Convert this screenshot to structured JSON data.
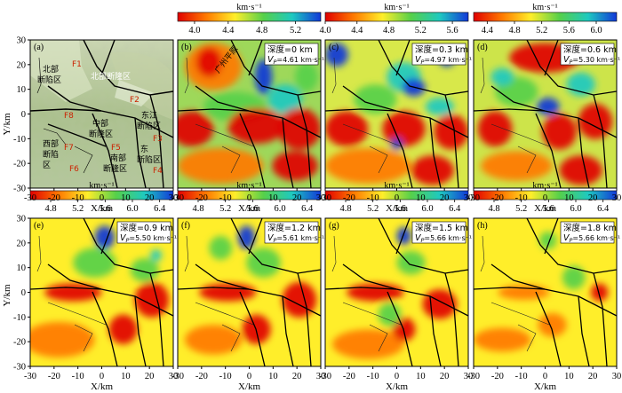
{
  "figure": {
    "unit": "km·s⁻¹",
    "ylabel": "Y/km",
    "xlabel": "X/km",
    "x_ticks": [
      "-30",
      "-20",
      "-10",
      "0",
      "10",
      "20",
      "30"
    ],
    "y_ticks": [
      "30",
      "20",
      "10",
      "0",
      "-10",
      "-20",
      "-30"
    ],
    "geo_map": {
      "letter": "(a)",
      "labels": [
        {
          "text": "北部",
          "color": "#000000"
        },
        {
          "text": "断陷区",
          "color": "#000000"
        },
        {
          "text": "F1",
          "color": "#cc2200"
        },
        {
          "text": "北部断隆区",
          "color": "#ffffff"
        },
        {
          "text": "F2",
          "color": "#cc2200"
        },
        {
          "text": "F8",
          "color": "#cc2200"
        },
        {
          "text": "中部",
          "color": "#000000"
        },
        {
          "text": "断隆区",
          "color": "#000000"
        },
        {
          "text": "东江",
          "color": "#000000"
        },
        {
          "text": "断陷区",
          "color": "#000000"
        },
        {
          "text": "西部",
          "color": "#000000"
        },
        {
          "text": "断陷",
          "color": "#000000"
        },
        {
          "text": "区",
          "color": "#000000"
        },
        {
          "text": "F7",
          "color": "#cc2200"
        },
        {
          "text": "F5",
          "color": "#cc2200"
        },
        {
          "text": "F3",
          "color": "#cc2200"
        },
        {
          "text": "东",
          "color": "#000000"
        },
        {
          "text": "南部",
          "color": "#000000"
        },
        {
          "text": "断陷区",
          "color": "#000000"
        },
        {
          "text": "断隆区",
          "color": "#000000"
        },
        {
          "text": "F6",
          "color": "#cc2200"
        },
        {
          "text": "F4",
          "color": "#cc2200"
        }
      ]
    }
  },
  "chart_data": [
    {
      "type": "heatmap",
      "panel": "(b)",
      "depth_label": "深度=0 km",
      "vp_label": "V",
      "vp_sub": "P",
      "vp_value": "=4.61 km·s⁻¹",
      "colorbar_ticks": [
        "4.0",
        "4.4",
        "4.8",
        "5.2"
      ],
      "colorbar_range": [
        3.8,
        5.5
      ],
      "annotation": "广州平原",
      "xlim": [
        -30,
        30
      ],
      "ylim": [
        -30,
        30
      ]
    },
    {
      "type": "heatmap",
      "panel": "(c)",
      "depth_label": "深度=0.3 km",
      "vp_label": "V",
      "vp_sub": "P",
      "vp_value": "=4.97 km·s⁻¹",
      "colorbar_ticks": [
        "4.0",
        "4.4",
        "4.8",
        "5.2",
        "5.6"
      ],
      "colorbar_range": [
        4.0,
        5.8
      ],
      "xlim": [
        -30,
        30
      ],
      "ylim": [
        -30,
        30
      ]
    },
    {
      "type": "heatmap",
      "panel": "(d)",
      "depth_label": "深度=0.6 km",
      "vp_label": "V",
      "vp_sub": "P",
      "vp_value": "=5.30 km·s⁻¹",
      "colorbar_ticks": [
        "4.4",
        "4.8",
        "5.2",
        "5.6",
        "6.0"
      ],
      "colorbar_range": [
        4.2,
        6.3
      ],
      "xlim": [
        -30,
        30
      ],
      "ylim": [
        -30,
        30
      ]
    },
    {
      "type": "heatmap",
      "panel": "(e)",
      "depth_label": "深度=0.9 km",
      "vp_label": "V",
      "vp_sub": "P",
      "vp_value": "=5.50 km·s⁻¹",
      "colorbar_ticks": [
        "4.8",
        "5.2",
        "5.6",
        "6.0",
        "6.4"
      ],
      "colorbar_range": [
        4.5,
        6.6
      ],
      "xlim": [
        -30,
        30
      ],
      "ylim": [
        -30,
        30
      ]
    },
    {
      "type": "heatmap",
      "panel": "(f)",
      "depth_label": "深度=1.2 km",
      "vp_label": "V",
      "vp_sub": "P",
      "vp_value": "=5.61 km·s⁻¹",
      "colorbar_ticks": [
        "4.8",
        "5.2",
        "5.6",
        "6.0",
        "6.4"
      ],
      "colorbar_range": [
        4.5,
        6.6
      ],
      "xlim": [
        -30,
        30
      ],
      "ylim": [
        -30,
        30
      ]
    },
    {
      "type": "heatmap",
      "panel": "(g)",
      "depth_label": "深度=1.5 km",
      "vp_label": "V",
      "vp_sub": "P",
      "vp_value": "=5.66 km·s⁻¹",
      "colorbar_ticks": [
        "4.8",
        "5.2",
        "5.6",
        "6.0",
        "6.4"
      ],
      "colorbar_range": [
        4.5,
        6.6
      ],
      "xlim": [
        -30,
        30
      ],
      "ylim": [
        -30,
        30
      ]
    },
    {
      "type": "heatmap",
      "panel": "(h)",
      "depth_label": "深度=1.8 km",
      "vp_label": "V",
      "vp_sub": "P",
      "vp_value": "=5.66 km·s⁻¹",
      "colorbar_ticks": [
        "4.8",
        "5.2",
        "5.6",
        "6.0",
        "6.4"
      ],
      "colorbar_range": [
        4.5,
        6.6
      ],
      "xlim": [
        -30,
        30
      ],
      "ylim": [
        -30,
        30
      ]
    }
  ]
}
